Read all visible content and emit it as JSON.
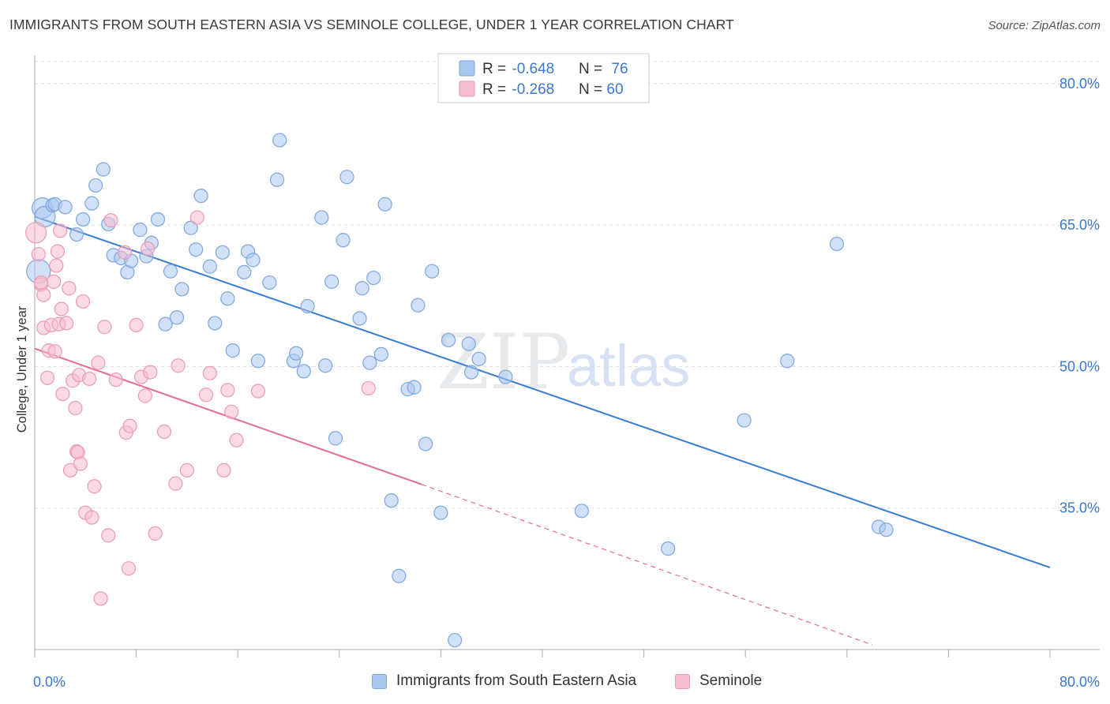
{
  "title": "IMMIGRANTS FROM SOUTH EASTERN ASIA VS SEMINOLE COLLEGE, UNDER 1 YEAR CORRELATION CHART",
  "source": "Source: ZipAtlas.com",
  "watermark": {
    "zip": "ZIP",
    "atlas": "atlas"
  },
  "colors": {
    "blue_fill": "#a9c6ef",
    "blue_stroke": "#7ea6df",
    "blue_line": "#3a7bd5",
    "pink_fill": "#f6bdd0",
    "pink_stroke": "#eb9ab5",
    "pink_line": "#e46b94",
    "tick_label": "#3a78d0",
    "grid": "#dddddd"
  },
  "legend_top": [
    {
      "r_label": "R = ",
      "r_value": "-0.648",
      "n_label": "N = ",
      "n_value": "76"
    },
    {
      "r_label": "R = ",
      "r_value": "-0.268",
      "n_label": "N = ",
      "n_value": "60"
    }
  ],
  "chart_data": {
    "type": "scatter",
    "title": "IMMIGRANTS FROM SOUTH EASTERN ASIA VS SEMINOLE COLLEGE, UNDER 1 YEAR CORRELATION CHART",
    "xlabel": "",
    "ylabel": "College, Under 1 year",
    "xlim": [
      0,
      80
    ],
    "ylim": [
      20,
      83
    ],
    "x_tick_labels": [
      "0.0%",
      "80.0%"
    ],
    "y_ticks": [
      35,
      50,
      65,
      80
    ],
    "y_tick_labels": [
      "35.0%",
      "50.0%",
      "65.0%",
      "80.0%"
    ],
    "grid": true,
    "legend_position": "top-center",
    "series": [
      {
        "name": "Immigrants from South Eastern Asia",
        "r": -0.648,
        "n": 76,
        "trend": {
          "x": [
            0,
            80
          ],
          "y": [
            65.9,
            28.7
          ]
        },
        "points": [
          [
            0.6,
            66.8
          ],
          [
            0.8,
            65.9
          ],
          [
            1.4,
            67.1
          ],
          [
            1.6,
            67.2
          ],
          [
            2.4,
            66.9
          ],
          [
            3.3,
            64.0
          ],
          [
            3.8,
            65.6
          ],
          [
            4.5,
            67.3
          ],
          [
            4.8,
            69.2
          ],
          [
            5.4,
            70.9
          ],
          [
            5.8,
            65.1
          ],
          [
            6.2,
            61.8
          ],
          [
            6.8,
            61.5
          ],
          [
            7.3,
            60.0
          ],
          [
            7.6,
            61.2
          ],
          [
            8.3,
            64.5
          ],
          [
            8.8,
            61.7
          ],
          [
            9.2,
            63.1
          ],
          [
            9.7,
            65.6
          ],
          [
            10.3,
            54.5
          ],
          [
            10.7,
            60.1
          ],
          [
            11.2,
            55.2
          ],
          [
            11.6,
            58.2
          ],
          [
            12.3,
            64.7
          ],
          [
            12.7,
            62.4
          ],
          [
            13.1,
            68.1
          ],
          [
            13.8,
            60.6
          ],
          [
            14.2,
            54.6
          ],
          [
            14.8,
            62.1
          ],
          [
            15.2,
            57.2
          ],
          [
            15.6,
            51.7
          ],
          [
            16.5,
            60.0
          ],
          [
            16.8,
            62.2
          ],
          [
            17.2,
            61.3
          ],
          [
            17.6,
            50.6
          ],
          [
            18.5,
            58.9
          ],
          [
            19.1,
            69.8
          ],
          [
            19.3,
            74.0
          ],
          [
            20.4,
            50.6
          ],
          [
            20.6,
            51.4
          ],
          [
            21.2,
            49.5
          ],
          [
            21.5,
            56.4
          ],
          [
            22.6,
            65.8
          ],
          [
            22.9,
            50.1
          ],
          [
            23.4,
            59.0
          ],
          [
            23.7,
            42.4
          ],
          [
            24.3,
            63.4
          ],
          [
            24.6,
            70.1
          ],
          [
            25.6,
            55.1
          ],
          [
            25.8,
            58.3
          ],
          [
            26.4,
            50.4
          ],
          [
            26.7,
            59.4
          ],
          [
            27.3,
            51.3
          ],
          [
            27.6,
            67.2
          ],
          [
            28.1,
            35.8
          ],
          [
            28.7,
            27.8
          ],
          [
            29.4,
            47.6
          ],
          [
            29.9,
            47.8
          ],
          [
            30.2,
            56.5
          ],
          [
            30.8,
            41.8
          ],
          [
            31.3,
            60.1
          ],
          [
            32.0,
            34.5
          ],
          [
            32.6,
            52.8
          ],
          [
            33.1,
            21.0
          ],
          [
            34.2,
            52.4
          ],
          [
            34.4,
            49.4
          ],
          [
            35.0,
            50.8
          ],
          [
            37.1,
            48.9
          ],
          [
            43.1,
            34.7
          ],
          [
            49.9,
            30.7
          ],
          [
            55.9,
            44.3
          ],
          [
            59.3,
            50.6
          ],
          [
            63.2,
            63.0
          ],
          [
            66.5,
            33.0
          ],
          [
            67.1,
            32.7
          ],
          [
            0.3,
            60.1
          ]
        ]
      },
      {
        "name": "Seminole",
        "r": -0.268,
        "n": 60,
        "trend": {
          "x": [
            0,
            30.5
          ],
          "y": [
            51.9,
            37.5
          ]
        },
        "trend_dashed": {
          "x": [
            30.5,
            66
          ],
          "y": [
            37.5,
            20.5
          ]
        },
        "points": [
          [
            0.1,
            64.2
          ],
          [
            0.3,
            61.9
          ],
          [
            0.5,
            58.7
          ],
          [
            0.7,
            57.6
          ],
          [
            0.7,
            54.1
          ],
          [
            1.0,
            48.8
          ],
          [
            1.1,
            51.7
          ],
          [
            1.3,
            54.4
          ],
          [
            1.5,
            59.0
          ],
          [
            1.6,
            51.6
          ],
          [
            1.7,
            60.7
          ],
          [
            1.8,
            62.2
          ],
          [
            1.9,
            54.5
          ],
          [
            2.0,
            64.4
          ],
          [
            2.1,
            56.1
          ],
          [
            2.2,
            47.1
          ],
          [
            2.5,
            54.6
          ],
          [
            2.7,
            58.3
          ],
          [
            2.8,
            39.0
          ],
          [
            3.0,
            48.5
          ],
          [
            3.2,
            45.6
          ],
          [
            3.3,
            41.0
          ],
          [
            3.4,
            40.9
          ],
          [
            3.5,
            49.1
          ],
          [
            3.6,
            39.7
          ],
          [
            3.8,
            56.9
          ],
          [
            4.0,
            34.5
          ],
          [
            4.3,
            48.7
          ],
          [
            4.5,
            34.0
          ],
          [
            4.7,
            37.3
          ],
          [
            5.0,
            50.4
          ],
          [
            5.2,
            25.4
          ],
          [
            5.5,
            54.2
          ],
          [
            5.8,
            32.1
          ],
          [
            6.0,
            65.5
          ],
          [
            6.4,
            48.6
          ],
          [
            7.1,
            62.1
          ],
          [
            7.2,
            43.0
          ],
          [
            7.4,
            28.6
          ],
          [
            7.5,
            43.7
          ],
          [
            8.0,
            54.4
          ],
          [
            8.4,
            48.9
          ],
          [
            8.7,
            46.9
          ],
          [
            8.9,
            62.5
          ],
          [
            9.1,
            49.4
          ],
          [
            9.5,
            32.3
          ],
          [
            10.2,
            43.1
          ],
          [
            11.1,
            37.6
          ],
          [
            11.3,
            50.1
          ],
          [
            12.0,
            39.0
          ],
          [
            12.8,
            65.8
          ],
          [
            13.5,
            47.0
          ],
          [
            13.8,
            49.3
          ],
          [
            14.9,
            39.0
          ],
          [
            15.2,
            47.5
          ],
          [
            15.5,
            45.2
          ],
          [
            15.9,
            42.2
          ],
          [
            17.6,
            47.4
          ],
          [
            26.3,
            47.7
          ],
          [
            0.5,
            58.9
          ]
        ]
      }
    ]
  }
}
